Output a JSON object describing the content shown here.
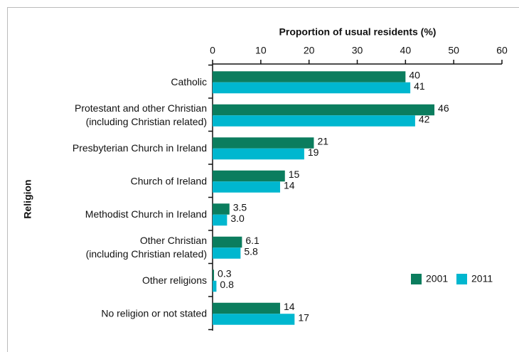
{
  "chart_data": {
    "type": "bar",
    "orientation": "horizontal",
    "x_label": "Proportion of usual residents (%)",
    "y_label": "Religion",
    "categories": [
      [
        "Catholic"
      ],
      [
        "Protestant and other Christian",
        "(including Christian related)"
      ],
      [
        "Presbyterian Church in Ireland"
      ],
      [
        "Church of Ireland"
      ],
      [
        "Methodist Church in Ireland"
      ],
      [
        "Other Christian",
        "(including Christian related)"
      ],
      [
        "Other religions"
      ],
      [
        "No religion or not stated"
      ]
    ],
    "series": [
      {
        "name": "2001",
        "color": "#0b7d5e",
        "values": [
          40,
          46,
          21,
          15,
          3.5,
          6.1,
          0.3,
          14
        ],
        "value_labels": [
          "40",
          "46",
          "21",
          "15",
          "3.5",
          "6.1",
          "0.3",
          "14"
        ]
      },
      {
        "name": "2011",
        "color": "#00b7cf",
        "values": [
          41,
          42,
          19,
          14,
          3,
          5.8,
          0.8,
          17
        ],
        "value_labels": [
          "41",
          "42",
          "19",
          "14",
          "3.0",
          "5.8",
          "0.8",
          "17"
        ]
      }
    ],
    "xlim": [
      0,
      60
    ],
    "xticks": [
      0,
      10,
      20,
      30,
      40,
      50,
      60
    ],
    "legend": "lower-right"
  }
}
